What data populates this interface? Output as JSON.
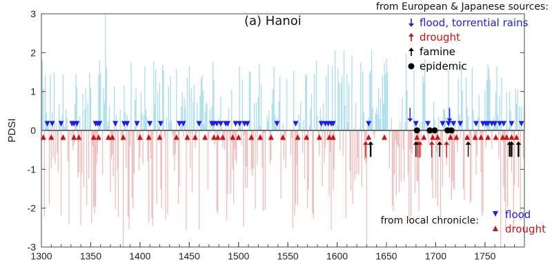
{
  "title": "(a) Hanoi",
  "colors": {
    "positive_bar": "#a9dcee",
    "negative_bar": "#eebcbc",
    "flood": "#1c1cf0",
    "drought": "#d01010",
    "famine": "#000000",
    "epidemic": "#000000"
  },
  "legend_top": {
    "heading": "from European & Japanese sources:",
    "items": [
      {
        "label": "flood, torrential rains",
        "symbol": "down-arrow",
        "color": "#1c1cf0"
      },
      {
        "label": "drought",
        "symbol": "up-arrow",
        "color": "#d01010"
      },
      {
        "label": "famine",
        "symbol": "up-arrow",
        "color": "#000000"
      },
      {
        "label": "epidemic",
        "symbol": "dot",
        "color": "#000000"
      }
    ]
  },
  "legend_bottom": {
    "heading": "from local chronicle:",
    "items": [
      {
        "label": "flood",
        "symbol": "down-triangle",
        "color": "#1c1cf0"
      },
      {
        "label": "drought",
        "symbol": "up-triangle",
        "color": "#d01010"
      }
    ]
  },
  "chart_data": {
    "type": "bar",
    "title": "(a) Hanoi",
    "xlabel": "",
    "ylabel": "PDSI",
    "xlim": [
      1300,
      1790
    ],
    "ylim": [
      -3,
      3
    ],
    "xticks": [
      1300,
      1350,
      1400,
      1450,
      1500,
      1550,
      1600,
      1650,
      1700,
      1750
    ],
    "yticks": [
      3,
      2,
      1,
      0,
      -1,
      -2,
      -3
    ],
    "bar_years": [
      1300,
      1790
    ],
    "pdsi_peaks": [
      {
        "year": 1365,
        "value": 3.5
      },
      {
        "year": 1383,
        "value": -3.0
      },
      {
        "year": 1630,
        "value": -3.0
      },
      {
        "year": 1766,
        "value": -3.0
      }
    ],
    "local_chronicle_floods": [
      1306,
      1311,
      1320,
      1331,
      1333,
      1336,
      1355,
      1357,
      1359,
      1375,
      1384,
      1387,
      1397,
      1410,
      1421,
      1440,
      1444,
      1460,
      1473,
      1475,
      1478,
      1482,
      1487,
      1489,
      1497,
      1501,
      1506,
      1509,
      1539,
      1558,
      1584,
      1588,
      1591,
      1594,
      1596,
      1632,
      1680,
      1692,
      1707,
      1713,
      1718,
      1725,
      1741,
      1748,
      1751,
      1753,
      1757,
      1760,
      1765,
      1769,
      1777,
      1787
    ],
    "local_chronicle_droughts": [
      1302,
      1310,
      1322,
      1333,
      1338,
      1353,
      1358,
      1368,
      1372,
      1383,
      1400,
      1409,
      1420,
      1437,
      1448,
      1456,
      1466,
      1475,
      1479,
      1484,
      1494,
      1500,
      1513,
      1522,
      1533,
      1545,
      1560,
      1569,
      1582,
      1592,
      1596,
      1632,
      1648,
      1681,
      1688,
      1697,
      1702,
      1715,
      1721,
      1732,
      1740,
      1746,
      1753,
      1761,
      1768,
      1772,
      1777,
      1782
    ],
    "european_japanese_floods": [
      1674,
      1714
    ],
    "european_japanese_droughts": [
      1629,
      1682,
      1684,
      1696,
      1711
    ],
    "european_japanese_famines": [
      1634,
      1680,
      1704,
      1733,
      1775,
      1777,
      1784
    ],
    "european_japanese_epidemics": [
      1681,
      1694,
      1699,
      1712,
      1716
    ]
  }
}
